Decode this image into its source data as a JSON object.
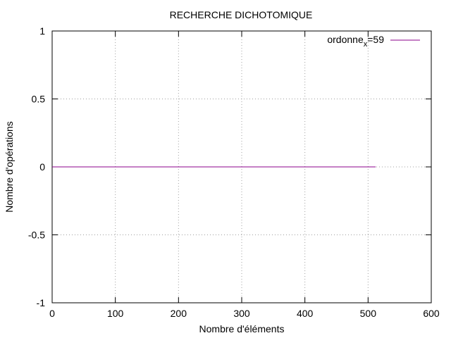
{
  "chart_data": {
    "type": "line",
    "title": "RECHERCHE DICHOTOMIQUE",
    "xlabel": "Nombre d'éléments",
    "ylabel": "Nombre d'opérations",
    "xlim": [
      0,
      600
    ],
    "ylim": [
      -1,
      1
    ],
    "xticks": [
      0,
      100,
      200,
      300,
      400,
      500,
      600
    ],
    "yticks": [
      -1,
      -0.5,
      0,
      0.5,
      1
    ],
    "xtick_labels": [
      "0",
      "100",
      "200",
      "300",
      "400",
      "500",
      "600"
    ],
    "ytick_labels": [
      "-1",
      "-0.5",
      "0",
      "0.5",
      "1"
    ],
    "grid": true,
    "legend_position": "top-right",
    "series": [
      {
        "name_parts": {
          "base": "ordonne",
          "sub": "x",
          "rest": "=59"
        },
        "color": "#8b008b",
        "x": [
          0,
          512
        ],
        "y": [
          0,
          0
        ]
      }
    ]
  }
}
